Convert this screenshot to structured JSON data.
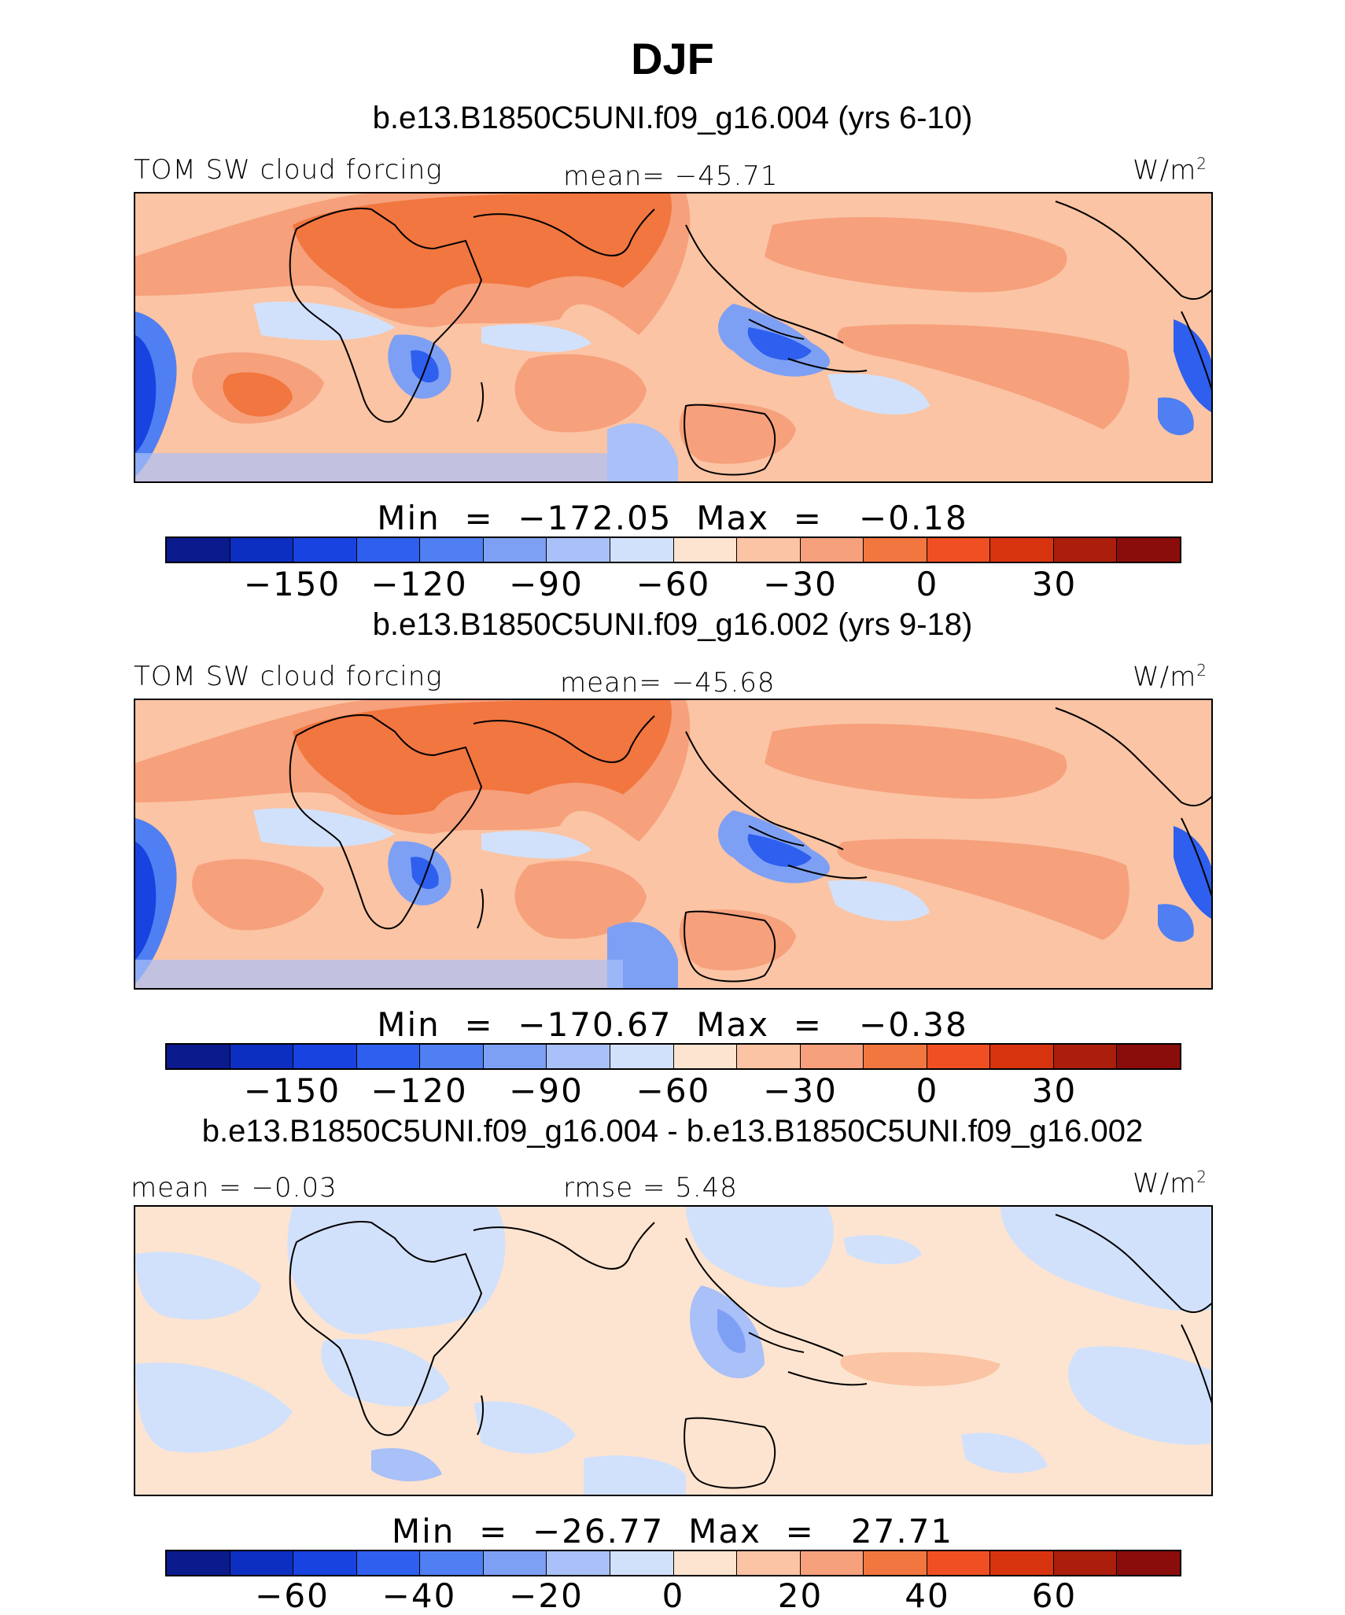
{
  "title": "DJF",
  "units_text": "W/m",
  "units_sup": "2",
  "colorbar_colors": [
    "#0b1a8c",
    "#0c2fc2",
    "#1843e0",
    "#2e5fee",
    "#4f7ff2",
    "#7ea0f4",
    "#a9c0f8",
    "#d2e1fb",
    "#fde4d0",
    "#fbc4a4",
    "#f6a07c",
    "#f2763f",
    "#ef4f22",
    "#d8330f",
    "#ab1e0b",
    "#8a0d0b"
  ],
  "panels": [
    {
      "title": "b.e13.B1850C5UNI.f09_g16.004 (yrs 6-10)",
      "left_label": "TOM SW cloud forcing",
      "center_label": "mean=  −45.71",
      "min_label": "Min",
      "min_value": "−172.05",
      "max_label": "Max",
      "max_value": "−0.18",
      "ticks": [
        "−150",
        "−120",
        "−90",
        "−60",
        "−30",
        "0",
        "30"
      ]
    },
    {
      "title": "b.e13.B1850C5UNI.f09_g16.002 (yrs 9-18)",
      "left_label": "TOM SW cloud forcing",
      "center_label": "mean=  −45.68",
      "min_label": "Min",
      "min_value": "−170.67",
      "max_label": "Max",
      "max_value": "−0.38",
      "ticks": [
        "−150",
        "−120",
        "−90",
        "−60",
        "−30",
        "0",
        "30"
      ]
    },
    {
      "title": "b.e13.B1850C5UNI.f09_g16.004 - b.e13.B1850C5UNI.f09_g16.002",
      "left_label": "mean =   −0.03",
      "center_label": "rmse =    5.48",
      "min_label": "Min",
      "min_value": "−26.77",
      "max_label": "Max",
      "max_value": "27.71",
      "ticks": [
        "−60",
        "−40",
        "−20",
        "0",
        "20",
        "40",
        "60"
      ]
    }
  ]
}
